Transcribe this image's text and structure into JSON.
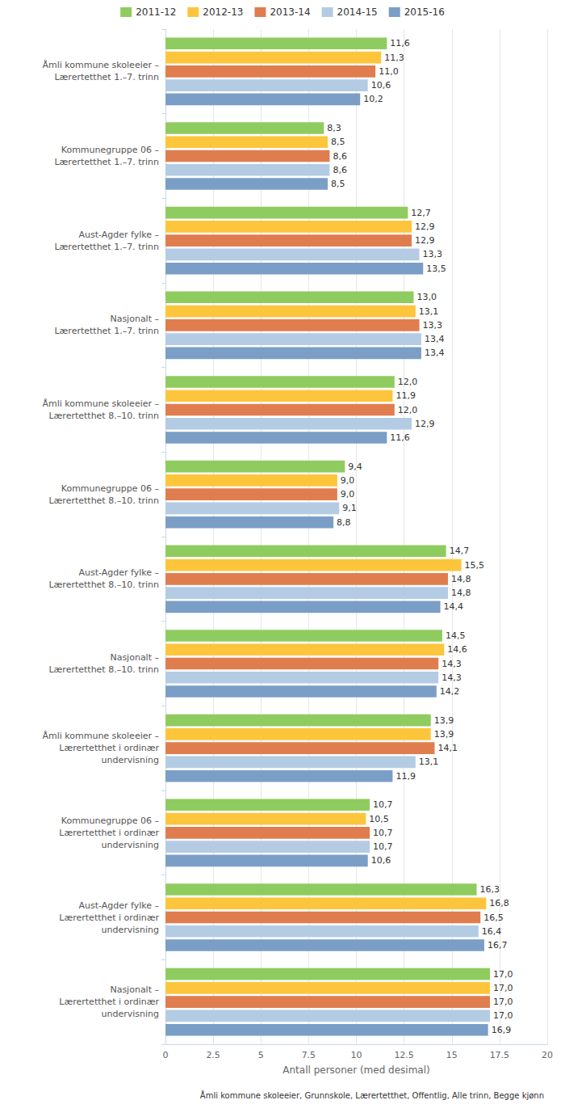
{
  "chart_data": {
    "type": "bar",
    "orientation": "horizontal",
    "categories": [
      "Åmli kommune skoleeier –\nLærertetthet 1.–7. trinn",
      "Kommunegruppe 06 –\nLærertetthet 1.–7. trinn",
      "Aust-Agder fylke –\nLærertetthet 1.–7. trinn",
      "Nasjonalt –\nLærertetthet 1.–7. trinn",
      "Åmli kommune skoleeier –\nLærertetthet 8.–10. trinn",
      "Kommunegruppe 06 –\nLærertetthet 8.–10. trinn",
      "Aust-Agder fylke –\nLærertetthet 8.–10. trinn",
      "Nasjonalt –\nLærertetthet 8.–10. trinn",
      "Åmli kommune skoleeier –\nLærertetthet i ordinær\nundervisning",
      "Kommunegruppe 06 –\nLærertetthet i ordinær\nundervisning",
      "Aust-Agder fylke –\nLærertetthet i ordinær\nundervisning",
      "Nasjonalt –\nLærertetthet i ordinær\nundervisning"
    ],
    "series": [
      {
        "name": "2011-12",
        "color": "#8fcc5f",
        "values": [
          11.6,
          8.3,
          12.7,
          13.0,
          12.0,
          9.4,
          14.7,
          14.5,
          13.9,
          10.7,
          16.3,
          17.0
        ],
        "value_labels": [
          "11,6",
          "8,3",
          "12,7",
          "13,0",
          "12,0",
          "9,4",
          "14,7",
          "14,5",
          "13,9",
          "10,7",
          "16,3",
          "17,0"
        ]
      },
      {
        "name": "2012-13",
        "color": "#fcc53c",
        "values": [
          11.3,
          8.5,
          12.9,
          13.1,
          11.9,
          9.0,
          15.5,
          14.6,
          13.9,
          10.5,
          16.8,
          17.0
        ],
        "value_labels": [
          "11,3",
          "8,5",
          "12,9",
          "13,1",
          "11,9",
          "9,0",
          "15,5",
          "14,6",
          "13,9",
          "10,5",
          "16,8",
          "17,0"
        ]
      },
      {
        "name": "2013-14",
        "color": "#e07d4f",
        "values": [
          11.0,
          8.6,
          12.9,
          13.3,
          12.0,
          9.0,
          14.8,
          14.3,
          14.1,
          10.7,
          16.5,
          17.0
        ],
        "value_labels": [
          "11,0",
          "8,6",
          "12,9",
          "13,3",
          "12,0",
          "9,0",
          "14,8",
          "14,3",
          "14,1",
          "10,7",
          "16,5",
          "17,0"
        ]
      },
      {
        "name": "2014-15",
        "color": "#b4cce3",
        "values": [
          10.6,
          8.6,
          13.3,
          13.4,
          12.9,
          9.1,
          14.8,
          14.3,
          13.1,
          10.7,
          16.4,
          17.0
        ],
        "value_labels": [
          "10,6",
          "8,6",
          "13,3",
          "13,4",
          "12,9",
          "9,1",
          "14,8",
          "14,3",
          "13,1",
          "10,7",
          "16,4",
          "17,0"
        ]
      },
      {
        "name": "2015-16",
        "color": "#7b9ec7",
        "values": [
          10.2,
          8.5,
          13.5,
          13.4,
          11.6,
          8.8,
          14.4,
          14.2,
          11.9,
          10.6,
          16.7,
          16.9
        ],
        "value_labels": [
          "10,2",
          "8,5",
          "13,5",
          "13,4",
          "11,6",
          "8,8",
          "14,4",
          "14,2",
          "11,9",
          "10,6",
          "16,7",
          "16,9"
        ]
      }
    ],
    "x_label": "Antall personer (med desimal)",
    "xlim": [
      0,
      20
    ],
    "xticks": [
      0,
      2.5,
      5,
      7.5,
      10,
      12.5,
      15,
      17.5,
      20
    ],
    "grid": true,
    "legend": "top",
    "data_labels": true,
    "footnote": "Åmli kommune skoleeier, Grunnskole, Lærertetthet, Offentlig, Alle trinn, Begge kjønn"
  }
}
